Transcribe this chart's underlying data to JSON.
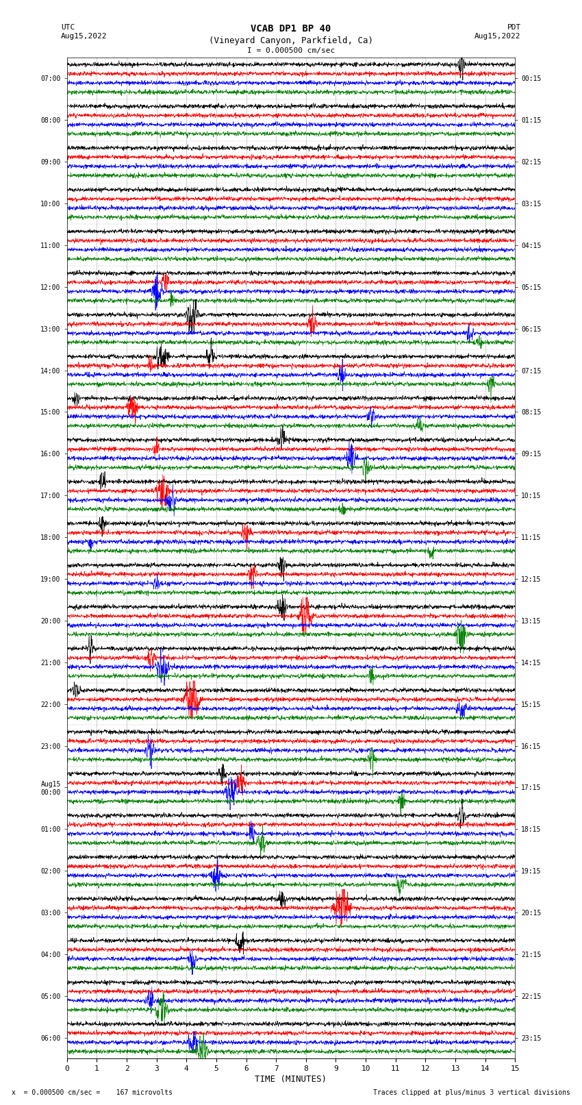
{
  "title_line1": "VCAB DP1 BP 40",
  "title_line2": "(Vineyard Canyon, Parkfield, Ca)",
  "scale_label": "I = 0.000500 cm/sec",
  "left_header": "UTC\nAug15,2022",
  "right_header": "PDT\nAug15,2022",
  "xlabel": "TIME (MINUTES)",
  "footer_left": "x  = 0.000500 cm/sec =    167 microvolts",
  "footer_right": "Traces clipped at plus/minus 3 vertical divisions",
  "xlim": [
    0,
    15
  ],
  "xticks": [
    0,
    1,
    2,
    3,
    4,
    5,
    6,
    7,
    8,
    9,
    10,
    11,
    12,
    13,
    14,
    15
  ],
  "utc_labels": [
    "07:00",
    "08:00",
    "09:00",
    "10:00",
    "11:00",
    "12:00",
    "13:00",
    "14:00",
    "15:00",
    "16:00",
    "17:00",
    "18:00",
    "19:00",
    "20:00",
    "21:00",
    "22:00",
    "23:00",
    "Aug15\n00:00",
    "01:00",
    "02:00",
    "03:00",
    "04:00",
    "05:00",
    "06:00"
  ],
  "pdt_labels": [
    "00:15",
    "01:15",
    "02:15",
    "03:15",
    "04:15",
    "05:15",
    "06:15",
    "07:15",
    "08:15",
    "09:15",
    "10:15",
    "11:15",
    "12:15",
    "13:15",
    "14:15",
    "15:15",
    "16:15",
    "17:15",
    "18:15",
    "19:15",
    "20:15",
    "21:15",
    "22:15",
    "23:15"
  ],
  "n_rows": 24,
  "n_channels": 4,
  "colors": [
    "black",
    "red",
    "blue",
    "green"
  ],
  "bg_color": "white",
  "n_points": 1800,
  "noise_amp": 0.03,
  "seed": 42,
  "events": [
    [
      0,
      0,
      13.2,
      12,
      40
    ],
    [
      5,
      1,
      3.3,
      8,
      50
    ],
    [
      5,
      2,
      3.0,
      14,
      80
    ],
    [
      5,
      3,
      3.5,
      6,
      40
    ],
    [
      6,
      0,
      4.2,
      16,
      70
    ],
    [
      6,
      1,
      8.2,
      10,
      60
    ],
    [
      6,
      2,
      13.5,
      8,
      50
    ],
    [
      6,
      3,
      13.8,
      7,
      45
    ],
    [
      7,
      0,
      3.2,
      14,
      80
    ],
    [
      7,
      0,
      4.8,
      10,
      60
    ],
    [
      7,
      1,
      2.8,
      6,
      40
    ],
    [
      7,
      2,
      9.2,
      9,
      55
    ],
    [
      7,
      3,
      14.2,
      8,
      50
    ],
    [
      8,
      0,
      0.3,
      7,
      45
    ],
    [
      8,
      1,
      2.2,
      12,
      70
    ],
    [
      8,
      2,
      10.2,
      9,
      55
    ],
    [
      8,
      3,
      11.8,
      8,
      50
    ],
    [
      9,
      0,
      7.2,
      9,
      55
    ],
    [
      9,
      1,
      3.0,
      8,
      50
    ],
    [
      9,
      2,
      9.5,
      11,
      70
    ],
    [
      9,
      3,
      10.0,
      9,
      60
    ],
    [
      10,
      0,
      1.2,
      8,
      50
    ],
    [
      10,
      1,
      3.2,
      15,
      90
    ],
    [
      10,
      2,
      3.5,
      10,
      65
    ],
    [
      10,
      3,
      9.2,
      7,
      45
    ],
    [
      11,
      0,
      1.2,
      8,
      50
    ],
    [
      11,
      1,
      6.0,
      10,
      60
    ],
    [
      11,
      2,
      0.8,
      6,
      40
    ],
    [
      11,
      3,
      12.2,
      7,
      45
    ],
    [
      12,
      0,
      7.2,
      9,
      55
    ],
    [
      12,
      1,
      6.2,
      9,
      55
    ],
    [
      12,
      2,
      3.0,
      6,
      40
    ],
    [
      13,
      0,
      7.2,
      10,
      60
    ],
    [
      13,
      1,
      8.0,
      15,
      90
    ],
    [
      13,
      3,
      13.2,
      11,
      70
    ],
    [
      14,
      0,
      0.8,
      9,
      55
    ],
    [
      14,
      1,
      2.8,
      9,
      55
    ],
    [
      14,
      2,
      3.2,
      13,
      80
    ],
    [
      14,
      3,
      10.2,
      8,
      50
    ],
    [
      15,
      0,
      0.3,
      9,
      55
    ],
    [
      15,
      1,
      4.2,
      18,
      110
    ],
    [
      15,
      2,
      13.2,
      10,
      65
    ],
    [
      16,
      2,
      2.8,
      10,
      65
    ],
    [
      16,
      3,
      10.2,
      9,
      55
    ],
    [
      17,
      0,
      5.2,
      9,
      55
    ],
    [
      17,
      1,
      5.8,
      10,
      65
    ],
    [
      17,
      2,
      5.5,
      13,
      80
    ],
    [
      17,
      3,
      11.2,
      8,
      50
    ],
    [
      18,
      0,
      13.2,
      9,
      55
    ],
    [
      18,
      2,
      6.2,
      9,
      55
    ],
    [
      18,
      3,
      6.5,
      10,
      65
    ],
    [
      19,
      2,
      5.0,
      10,
      65
    ],
    [
      19,
      3,
      11.2,
      10,
      65
    ],
    [
      20,
      0,
      7.2,
      8,
      50
    ],
    [
      20,
      1,
      9.2,
      18,
      110
    ],
    [
      21,
      0,
      5.8,
      10,
      65
    ],
    [
      21,
      2,
      4.2,
      9,
      55
    ],
    [
      22,
      2,
      2.8,
      9,
      55
    ],
    [
      22,
      3,
      3.2,
      13,
      80
    ],
    [
      23,
      2,
      4.2,
      10,
      65
    ],
    [
      23,
      3,
      4.5,
      12,
      75
    ]
  ]
}
